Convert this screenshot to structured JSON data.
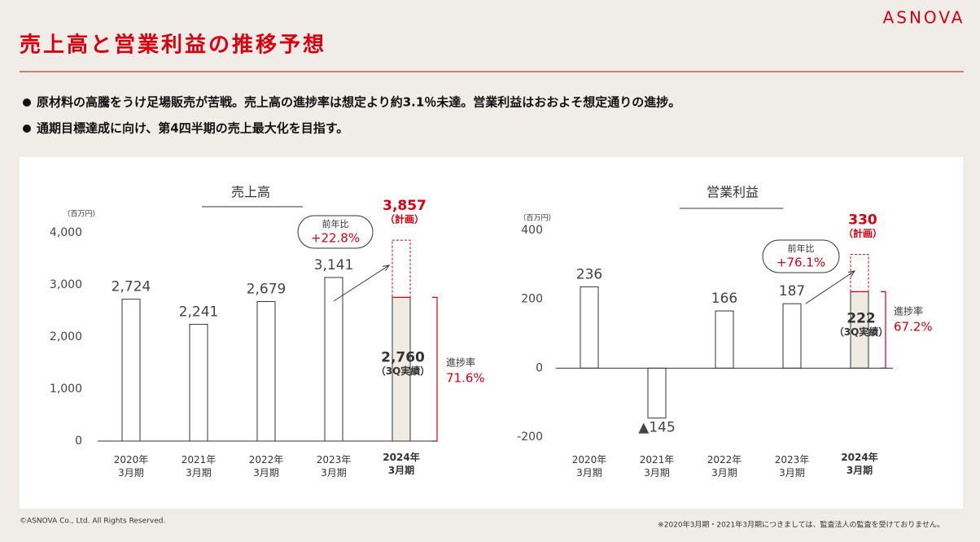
{
  "logo": "ASNOVA",
  "title": "売上高と営業利益の推移予想",
  "bullets": [
    "原材料の高騰をうけ足場販売が苦戦。売上高の進捗率は想定より約3.1％未達。営業利益はおおよそ想定通りの進捗。",
    "通期目標達成に向け、第4四半期の売上最大化を目指す。"
  ],
  "copyright": "©ASNOVA Co., Ltd. All Rights Reserved.",
  "note": "※2020年3月期・2021年3月期につきましては、監査法人の監査を受けておりません。",
  "chart_data": [
    {
      "type": "bar",
      "title": "売上高",
      "unit": "（百万円）",
      "categories": [
        "2020年\n3月期",
        "2021年\n3月期",
        "2022年\n3月期",
        "2023年\n3月期",
        "2024年\n3月期"
      ],
      "values": [
        2724,
        2241,
        2679,
        3141,
        2760
      ],
      "value_labels": [
        "2,724",
        "2,241",
        "2,679",
        "3,141",
        "2,760"
      ],
      "highlight_index": 4,
      "actual_note": "（3Q実績）",
      "plan": {
        "value": 3857,
        "value_label": "3,857",
        "label": "（計画）"
      },
      "growth_label": "前年比",
      "growth": "+22.8%",
      "progress_label": "進捗率",
      "progress_rate": "71.6%",
      "color": "#ffffff",
      "highlight_color": "#efebe3",
      "accent_color": "#d7000f",
      "ylim": [
        0,
        4000
      ],
      "yticks": [
        0,
        {
          "value": 1000,
          "label": "1,000"
        },
        {
          "value": 2000,
          "label": "2,000"
        },
        {
          "value": 3000,
          "label": "3,000"
        },
        {
          "value": 4000,
          "label": "4,000"
        }
      ],
      "grid": false
    },
    {
      "type": "bar",
      "title": "営業利益",
      "unit": "（百万円）",
      "categories": [
        "2020年\n3月期",
        "2021年\n3月期",
        "2022年\n3月期",
        "2023年\n3月期",
        "2024年\n3月期"
      ],
      "values": [
        236,
        -145,
        166,
        187,
        222
      ],
      "value_labels": [
        "236",
        "▲145",
        "166",
        "187",
        "222"
      ],
      "highlight_index": 4,
      "actual_note": "（3Q実績）",
      "plan": {
        "value": 330,
        "value_label": "330",
        "label": "（計画）"
      },
      "growth_label": "前年比",
      "growth": "+76.1%",
      "progress_label": "進捗率",
      "progress_rate": "67.2%",
      "color": "#ffffff",
      "highlight_color": "#efebe3",
      "accent_color": "#d7000f",
      "ylim": [
        -200,
        400
      ],
      "yticks": [
        -200,
        0,
        200,
        400
      ],
      "grid": false
    }
  ]
}
